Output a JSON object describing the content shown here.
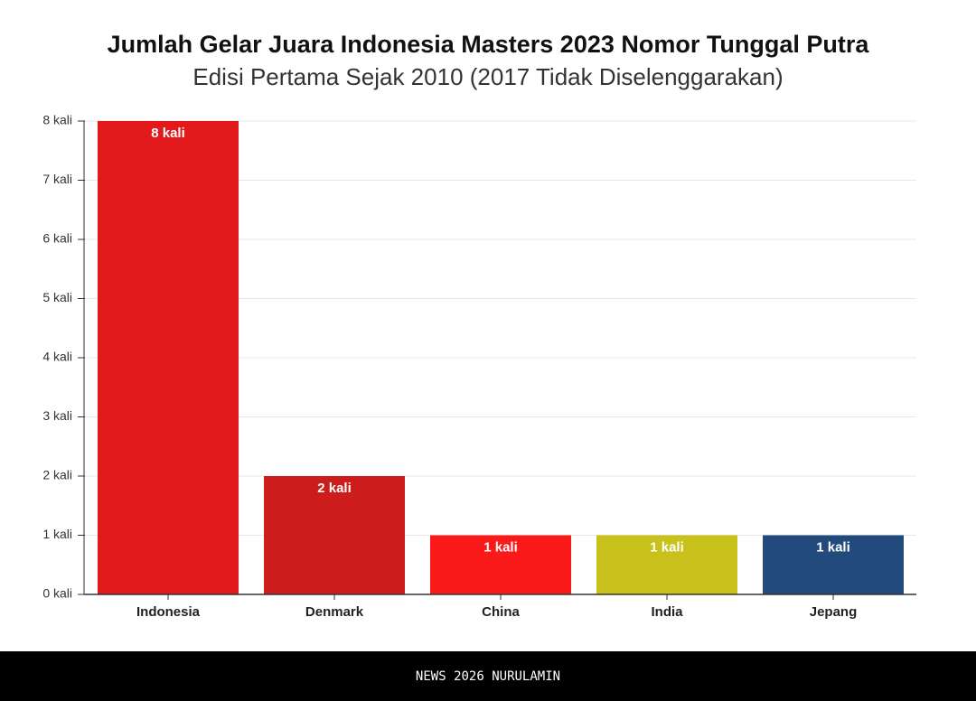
{
  "chart_data": {
    "type": "bar",
    "title": "Jumlah Gelar Juara Indonesia Masters 2023 Nomor Tunggal Putra",
    "subtitle": "Edisi Pertama Sejak 2010 (2017 Tidak Diselenggarakan)",
    "categories": [
      "Indonesia",
      "Denmark",
      "China",
      "India",
      "Jepang"
    ],
    "values": [
      8,
      2,
      1,
      1,
      1
    ],
    "value_labels": [
      "8 kali",
      "2 kali",
      "1 kali",
      "1 kali",
      "1 kali"
    ],
    "colors": [
      "#e31a1c",
      "#cd1c1c",
      "#fb1a1a",
      "#c8c11c",
      "#234a7c"
    ],
    "ylim": [
      0,
      8
    ],
    "yticks": [
      {
        "value": 0,
        "label": "0 kali"
      },
      {
        "value": 1,
        "label": "1 kali"
      },
      {
        "value": 2,
        "label": "2 kali"
      },
      {
        "value": 3,
        "label": "3 kali"
      },
      {
        "value": 4,
        "label": "4 kali"
      },
      {
        "value": 5,
        "label": "5 kali"
      },
      {
        "value": 6,
        "label": "6 kali"
      },
      {
        "value": 7,
        "label": "7 kali"
      },
      {
        "value": 8,
        "label": "8 kali"
      }
    ],
    "grid": true
  },
  "footer": "NEWS 2026 NURULAMIN"
}
